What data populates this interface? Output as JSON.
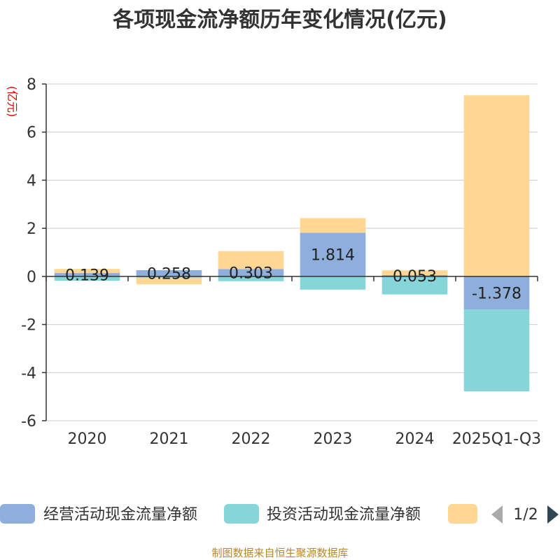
{
  "chart_data": {
    "type": "bar",
    "stacked": true,
    "title": "各项现金流净额历年变化情况(亿元)",
    "ylabel": "(亿元)",
    "ylim": [
      -6,
      8
    ],
    "yticks": [
      8,
      6,
      4,
      2,
      0,
      -2,
      -4,
      -6
    ],
    "grid": true,
    "legend_position": "bottom",
    "categories": [
      "2020",
      "2021",
      "2022",
      "2023",
      "2024",
      "2025Q1-Q3"
    ],
    "series": [
      {
        "name": "经营活动现金流量净额",
        "color": "#8eaedb",
        "values": [
          0.139,
          0.258,
          0.303,
          1.814,
          0.053,
          -1.378
        ]
      },
      {
        "name": "投资活动现金流量净额",
        "color": "#86d5d8",
        "values": [
          -0.18,
          -0.05,
          -0.2,
          -0.55,
          -0.75,
          -3.4
        ]
      },
      {
        "name": "",
        "color": "#fed794",
        "values": [
          0.17,
          -0.28,
          0.75,
          0.61,
          0.2,
          7.53
        ]
      }
    ],
    "data_labels": [
      "0.139",
      "0.258",
      "0.303",
      "1.814",
      "0.053",
      "-1.378"
    ]
  },
  "legend": {
    "items": [
      "经营活动现金流量净额",
      "投资活动现金流量净额",
      ""
    ],
    "pager": "1/2"
  },
  "source": "制图数据来自恒生聚源数据库"
}
